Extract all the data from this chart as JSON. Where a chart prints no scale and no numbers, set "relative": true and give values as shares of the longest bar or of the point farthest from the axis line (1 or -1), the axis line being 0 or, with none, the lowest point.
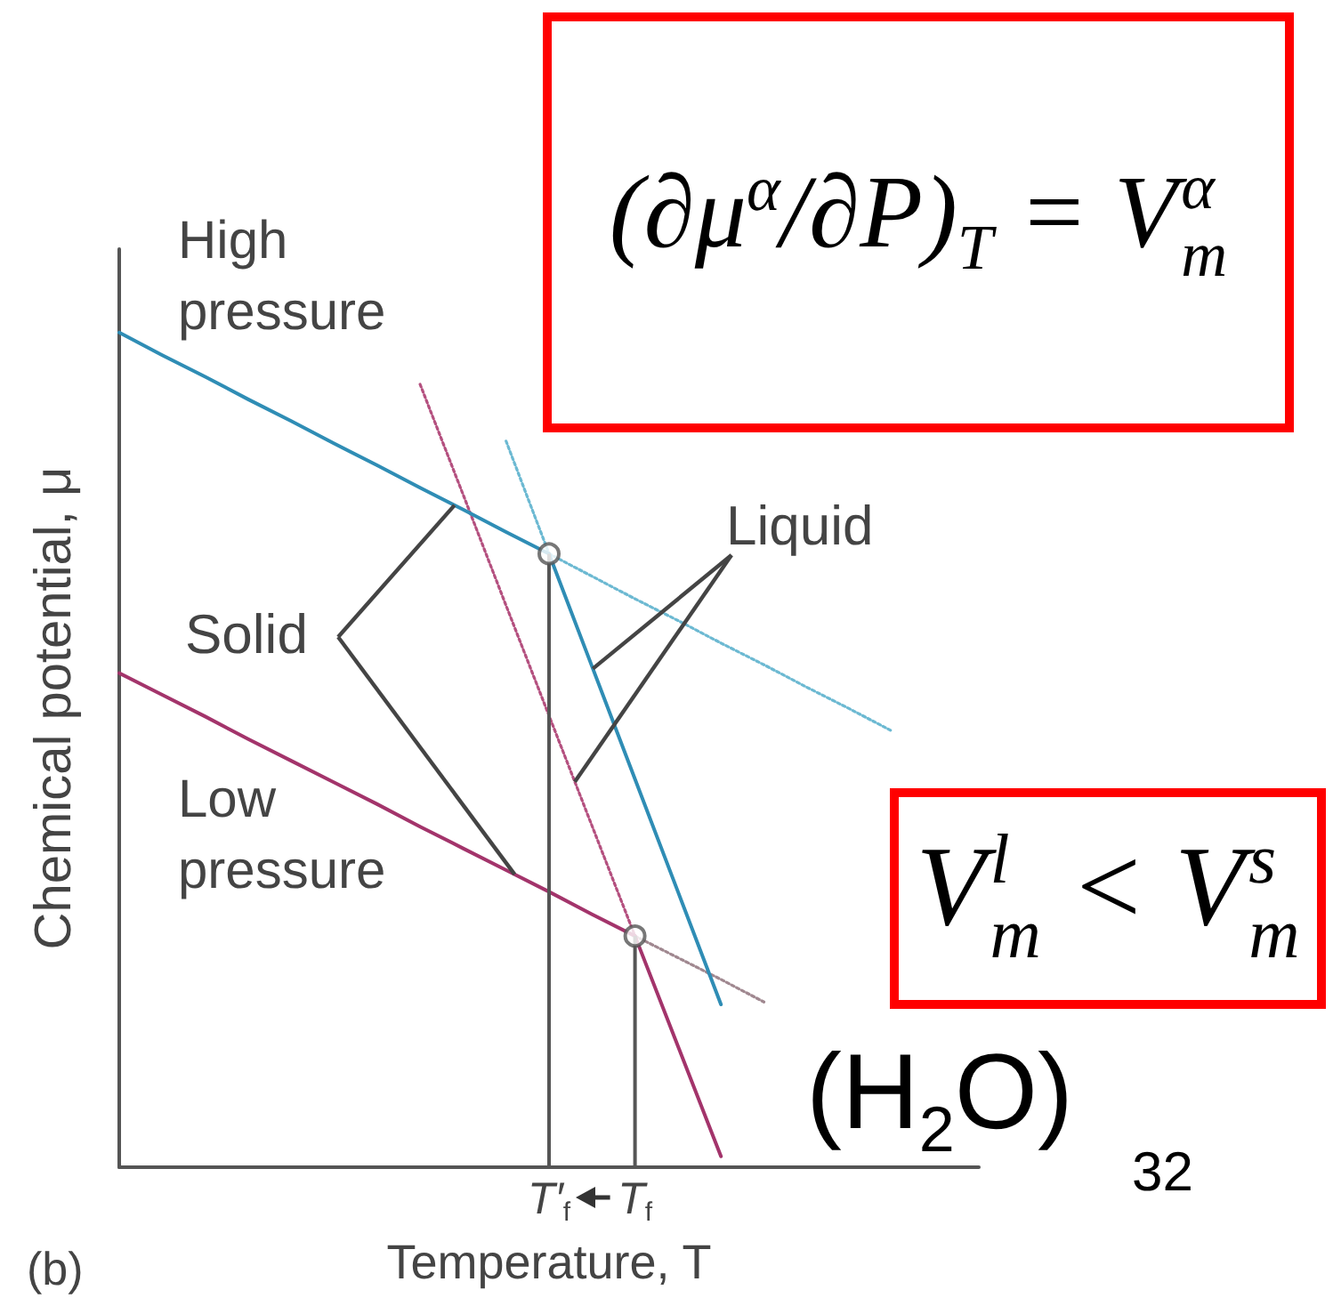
{
  "chart_data": {
    "type": "line",
    "relative": true,
    "xlabel": "Temperature, T",
    "ylabel": "Chemical potential, μ",
    "categories": [
      null,
      null,
      null,
      null,
      null,
      null,
      null,
      null,
      null,
      null,
      "T′$_{f}$",
      null,
      "T$_{f}$",
      null,
      null,
      null,
      null,
      null,
      null,
      null,
      null
    ],
    "tick_labels": "x",
    "grid": false,
    "marker": "none",
    "series": [
      {
        "color": "#2f8db5",
        "line_style": "solid",
        "values": [
          1,
          0.973,
          0.947,
          0.92,
          0.894,
          0.867,
          0.841,
          0.814,
          0.788,
          0.761,
          0.735,
          null,
          null,
          null,
          null,
          null,
          null,
          null,
          null,
          null,
          null
        ]
      },
      {
        "color": "#6cb9d2",
        "line_style": "dotted",
        "values": [
          null,
          null,
          null,
          null,
          null,
          null,
          null,
          null,
          null,
          null,
          0.735,
          0.708,
          0.681,
          0.655,
          0.628,
          0.602,
          0.575,
          0.549,
          0.522,
          null,
          null
        ]
      },
      {
        "color": "#6cb9d2",
        "line_style": "dotted",
        "values": [
          null,
          null,
          null,
          null,
          null,
          null,
          null,
          null,
          null,
          0.87,
          0.735,
          null,
          null,
          null,
          null,
          null,
          null,
          null,
          null,
          null,
          null
        ]
      },
      {
        "color": "#2f8db5",
        "line_style": "solid",
        "values": [
          null,
          null,
          null,
          null,
          null,
          null,
          null,
          null,
          null,
          null,
          0.735,
          0.6,
          0.465,
          0.33,
          0.195,
          null,
          null,
          null,
          null,
          null,
          null
        ]
      },
      {
        "color": "#a3346b",
        "line_style": "solid",
        "values": [
          0.592,
          0.566,
          0.54,
          0.513,
          0.487,
          0.461,
          0.435,
          0.408,
          0.382,
          0.356,
          0.33,
          0.303,
          0.277,
          null,
          null,
          null,
          null,
          null,
          null,
          null,
          null
        ]
      },
      {
        "color": "#a08890",
        "line_style": "dotted",
        "values": [
          null,
          null,
          null,
          null,
          null,
          null,
          null,
          null,
          null,
          null,
          null,
          null,
          0.277,
          0.251,
          0.225,
          0.198,
          null,
          null,
          null,
          null,
          null
        ]
      },
      {
        "color": "#b4507f",
        "line_style": "dotted",
        "values": [
          null,
          null,
          null,
          null,
          null,
          null,
          null,
          0.938,
          0.806,
          0.673,
          0.541,
          0.409,
          0.277,
          null,
          null,
          null,
          null,
          null,
          null,
          null,
          null
        ]
      },
      {
        "color": "#a3346b",
        "line_style": "solid",
        "values": [
          null,
          null,
          null,
          null,
          null,
          null,
          null,
          null,
          null,
          null,
          null,
          null,
          0.277,
          0.145,
          0.013,
          null,
          null,
          null,
          null,
          null,
          null
        ]
      },
      {
        "type": "lollipop",
        "marker": "circle",
        "color": "#555555",
        "values": [
          null,
          null,
          null,
          null,
          null,
          null,
          null,
          null,
          null,
          null,
          0.735,
          null,
          0.277,
          null,
          null,
          null,
          null,
          null,
          null,
          null,
          null
        ]
      }
    ],
    "annotations": [
      "High pressure",
      "Low pressure",
      "Solid",
      "Liquid",
      "(b)",
      "(∂μ$^{α}$/∂P)$_{T}$ = V$_{m}$$^{α}$",
      "V$_{m}$$^{l}$ < V$_{m}$$^{s}$",
      "(H$_{2}$O)",
      "32"
    ]
  }
}
